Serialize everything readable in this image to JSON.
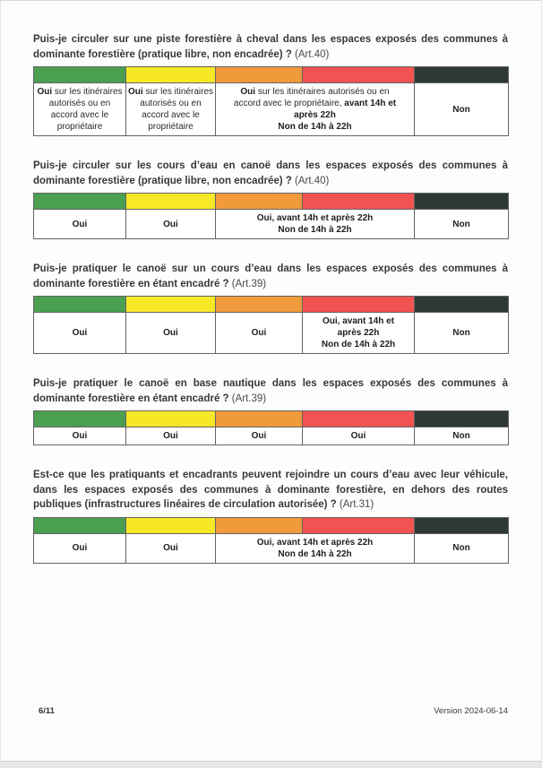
{
  "document": {
    "kind": "scanned-regulation-faq-page",
    "language": "fr"
  },
  "risk_colors": {
    "green": "#4A9F50",
    "yellow": "#F6E827",
    "orange": "#F09A3C",
    "red": "#F05352",
    "dark_green": "#2D3932"
  },
  "column_levels": [
    "green",
    "yellow",
    "orange",
    "red",
    "dark_green"
  ],
  "blocks": [
    {
      "question": [
        {
          "t": "Puis-je circuler sur une piste forestière à cheval dans les espaces exposés des communes à dominante forestière (pratique libre, non encadrée) ? ",
          "b": 1
        },
        {
          "t": "(Art.40)",
          "b": 0
        }
      ],
      "answers": [
        {
          "levels": [
            "green"
          ],
          "lines": [
            [
              {
                "t": "Oui",
                "b": 1
              },
              {
                "t": " sur les itinéraires",
                "b": 0
              }
            ],
            [
              {
                "t": "autorisés ou en",
                "b": 0
              }
            ],
            [
              {
                "t": "accord avec le",
                "b": 0
              }
            ],
            [
              {
                "t": "propriétaire",
                "b": 0
              }
            ]
          ]
        },
        {
          "levels": [
            "yellow"
          ],
          "lines": [
            [
              {
                "t": "Oui",
                "b": 1
              },
              {
                "t": " sur les itinéraires",
                "b": 0
              }
            ],
            [
              {
                "t": "autorisés ou en",
                "b": 0
              }
            ],
            [
              {
                "t": "accord avec le",
                "b": 0
              }
            ],
            [
              {
                "t": "propriétaire",
                "b": 0
              }
            ]
          ]
        },
        {
          "levels": [
            "orange",
            "red"
          ],
          "lines": [
            [
              {
                "t": "Oui",
                "b": 1
              },
              {
                "t": " sur les itinéraires autorisés ou en",
                "b": 0
              }
            ],
            [
              {
                "t": "accord avec le propriétaire, ",
                "b": 0
              },
              {
                "t": "avant 14h et",
                "b": 1
              }
            ],
            [
              {
                "t": "après 22h",
                "b": 1
              }
            ],
            [
              {
                "t": "Non de 14h à 22h",
                "b": 1
              }
            ]
          ]
        },
        {
          "levels": [
            "dark_green"
          ],
          "lines": [
            [
              {
                "t": "Non",
                "b": 1
              }
            ]
          ]
        }
      ]
    },
    {
      "question": [
        {
          "t": "Puis-je circuler sur les cours d’eau en canoë dans les espaces exposés des communes à dominante forestière (pratique libre, non encadrée) ? ",
          "b": 1
        },
        {
          "t": "(Art.40)",
          "b": 0
        }
      ],
      "answers": [
        {
          "levels": [
            "green"
          ],
          "lines": [
            [
              {
                "t": "Oui",
                "b": 1
              }
            ]
          ]
        },
        {
          "levels": [
            "yellow"
          ],
          "lines": [
            [
              {
                "t": "Oui",
                "b": 1
              }
            ]
          ]
        },
        {
          "levels": [
            "orange",
            "red"
          ],
          "lines": [
            [
              {
                "t": "Oui, avant 14h et après 22h",
                "b": 1
              }
            ],
            [
              {
                "t": "Non de 14h à 22h",
                "b": 1
              }
            ]
          ]
        },
        {
          "levels": [
            "dark_green"
          ],
          "lines": [
            [
              {
                "t": "Non",
                "b": 1
              }
            ]
          ]
        }
      ]
    },
    {
      "question": [
        {
          "t": "Puis-je pratiquer le canoë sur un cours d’eau dans les espaces exposés des communes à dominante forestière en étant encadré ? ",
          "b": 1
        },
        {
          "t": "(Art.39)",
          "b": 0
        }
      ],
      "answers": [
        {
          "levels": [
            "green"
          ],
          "lines": [
            [
              {
                "t": "Oui",
                "b": 1
              }
            ]
          ]
        },
        {
          "levels": [
            "yellow"
          ],
          "lines": [
            [
              {
                "t": "Oui",
                "b": 1
              }
            ]
          ]
        },
        {
          "levels": [
            "orange"
          ],
          "lines": [
            [
              {
                "t": "Oui",
                "b": 1
              }
            ]
          ]
        },
        {
          "levels": [
            "red"
          ],
          "lines": [
            [
              {
                "t": "Oui, avant 14h et",
                "b": 1
              }
            ],
            [
              {
                "t": "après 22h",
                "b": 1
              }
            ],
            [
              {
                "t": "Non de 14h à 22h",
                "b": 1
              }
            ]
          ]
        },
        {
          "levels": [
            "dark_green"
          ],
          "lines": [
            [
              {
                "t": "Non",
                "b": 1
              }
            ]
          ]
        }
      ]
    },
    {
      "question": [
        {
          "t": "Puis-je pratiquer le canoë en base nautique dans les espaces exposés des communes à dominante forestière en étant encadré ? ",
          "b": 1
        },
        {
          "t": "(Art.39)",
          "b": 0
        }
      ],
      "answers": [
        {
          "levels": [
            "green"
          ],
          "lines": [
            [
              {
                "t": "Oui",
                "b": 1
              }
            ]
          ]
        },
        {
          "levels": [
            "yellow"
          ],
          "lines": [
            [
              {
                "t": "Oui",
                "b": 1
              }
            ]
          ]
        },
        {
          "levels": [
            "orange"
          ],
          "lines": [
            [
              {
                "t": "Oui",
                "b": 1
              }
            ]
          ]
        },
        {
          "levels": [
            "red"
          ],
          "lines": [
            [
              {
                "t": "Oui",
                "b": 1
              }
            ]
          ]
        },
        {
          "levels": [
            "dark_green"
          ],
          "lines": [
            [
              {
                "t": "Non",
                "b": 1
              }
            ]
          ]
        }
      ]
    },
    {
      "question": [
        {
          "t": "Est-ce que les pratiquants et encadrants peuvent rejoindre un cours d’eau avec leur véhicule, dans les espaces exposés des communes à dominante forestière, en dehors des routes publiques (infrastructures linéaires de circulation autorisée) ? ",
          "b": 1
        },
        {
          "t": "(Art.31)",
          "b": 0
        }
      ],
      "answers": [
        {
          "levels": [
            "green"
          ],
          "lines": [
            [
              {
                "t": "Oui",
                "b": 1
              }
            ]
          ]
        },
        {
          "levels": [
            "yellow"
          ],
          "lines": [
            [
              {
                "t": "Oui",
                "b": 1
              }
            ]
          ]
        },
        {
          "levels": [
            "orange",
            "red"
          ],
          "lines": [
            [
              {
                "t": "Oui, avant 14h et après 22h",
                "b": 1
              }
            ],
            [
              {
                "t": "Non de 14h à 22h",
                "b": 1
              }
            ]
          ]
        },
        {
          "levels": [
            "dark_green"
          ],
          "lines": [
            [
              {
                "t": "Non",
                "b": 1
              }
            ]
          ]
        }
      ]
    }
  ],
  "footer": {
    "page_number": "6/11",
    "version": "Version 2024-06-14"
  }
}
